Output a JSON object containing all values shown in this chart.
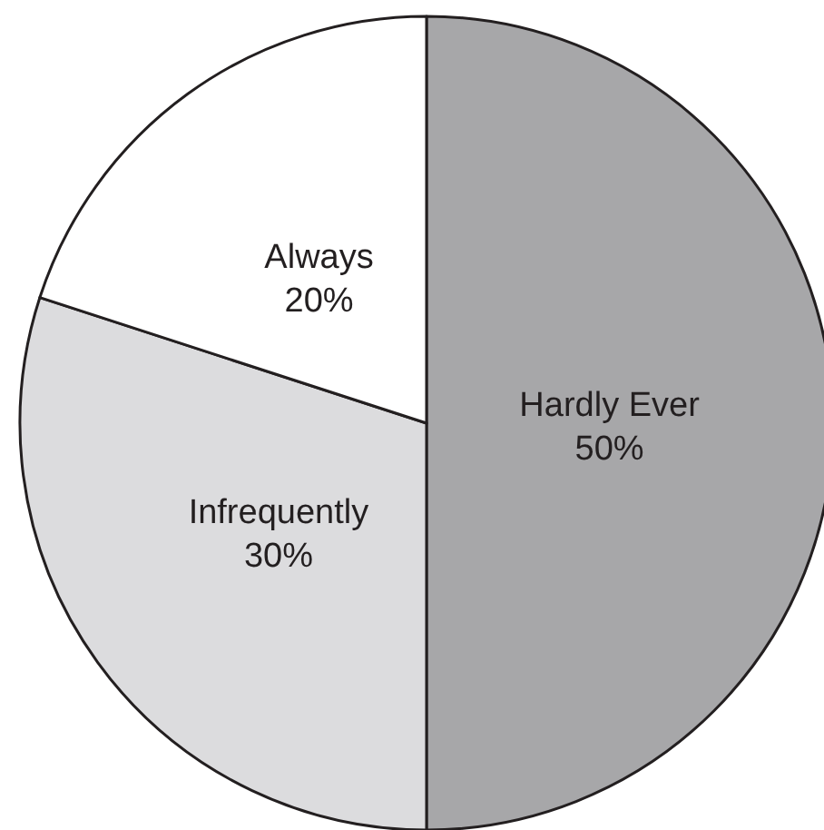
{
  "chart_data": {
    "type": "pie",
    "categories": [
      "Hardly Ever",
      "Infrequently",
      "Always"
    ],
    "values": [
      50,
      30,
      20
    ],
    "colors": [
      "#a7a7a9",
      "#dcdcde",
      "#ffffff"
    ],
    "value_labels": [
      "50%",
      "30%",
      "20%"
    ]
  }
}
